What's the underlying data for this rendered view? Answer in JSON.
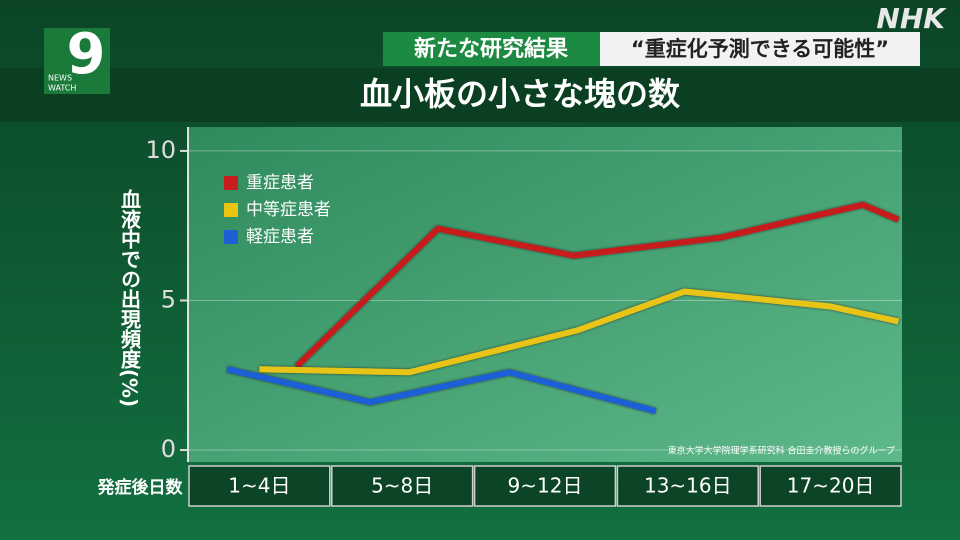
{
  "program": {
    "number": "9",
    "news": "NEWS",
    "watch": "WATCH"
  },
  "broadcaster": "NHK",
  "banner": {
    "tag": "新たな研究結果",
    "quote": "“重症化予測できる可能性”"
  },
  "chart_data": {
    "type": "line",
    "title": "血小板の小さな塊の数",
    "ylabel": "血液中での出現頻度(%)",
    "xlabel": "発症後日数",
    "categories": [
      "1~4日",
      "5~8日",
      "9~12日",
      "13~16日",
      "17~20日"
    ],
    "xlim": [
      0.5,
      20.5
    ],
    "ylim": [
      -0.4,
      10.8
    ],
    "yticks": [
      0,
      5,
      10
    ],
    "grid": true,
    "legend": "upper left",
    "source": "東京大学大学院理学系研究科 合田圭介教授らのグループ",
    "series": [
      {
        "name": "重症患者",
        "color": "#c81e1e",
        "x": [
          3.55,
          7.5,
          11.3,
          15.4,
          19.4,
          20.4
        ],
        "values": [
          2.8,
          7.4,
          6.5,
          7.1,
          8.2,
          7.7
        ]
      },
      {
        "name": "中等症患者",
        "color": "#e8c413",
        "x": [
          2.5,
          6.7,
          11.4,
          14.4,
          18.5,
          20.4
        ],
        "values": [
          2.7,
          2.6,
          4.0,
          5.3,
          4.8,
          4.3
        ]
      },
      {
        "name": "軽症患者",
        "color": "#1f5fd6",
        "x": [
          1.6,
          5.6,
          9.5,
          13.6
        ],
        "values": [
          2.7,
          1.6,
          2.6,
          1.3
        ]
      }
    ]
  }
}
